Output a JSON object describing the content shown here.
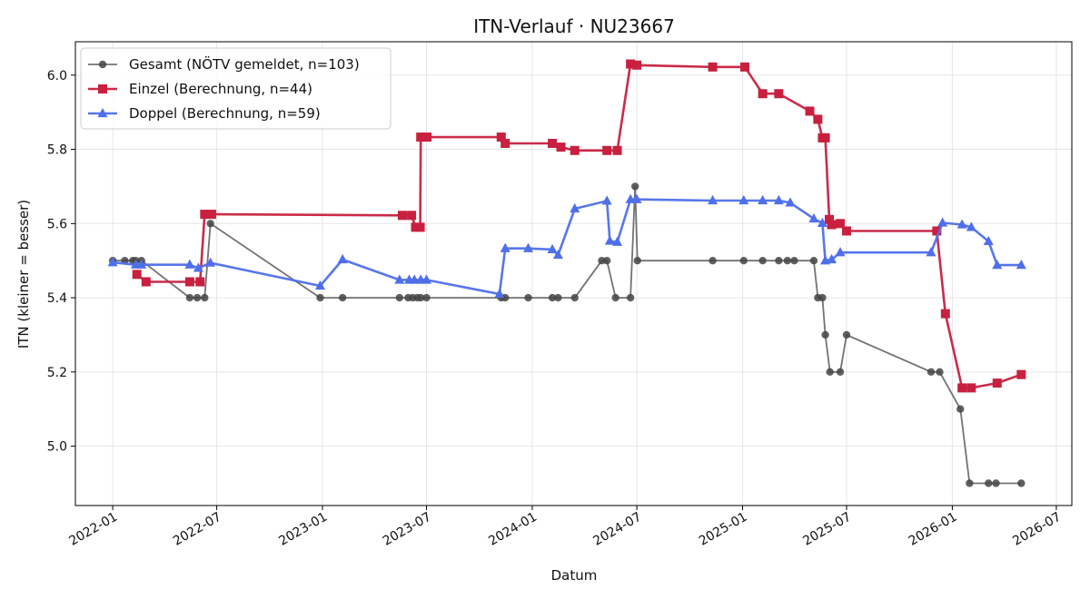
{
  "chart_data": {
    "type": "line",
    "title": "ITN-Verlauf · NU23667",
    "xlabel": "Datum",
    "ylabel": "ITN  (kleiner = besser)",
    "x_type": "date",
    "xlim": [
      "2021-10-28",
      "2026-07-28"
    ],
    "ylim": [
      4.84,
      6.09
    ],
    "x_ticks": [
      "2022-01",
      "2022-07",
      "2023-01",
      "2023-07",
      "2024-01",
      "2024-07",
      "2025-01",
      "2025-07",
      "2026-01",
      "2026-07"
    ],
    "y_ticks": [
      5.0,
      5.2,
      5.4,
      5.6,
      5.8,
      6.0
    ],
    "grid": true,
    "legend_position": "top-left",
    "series": [
      {
        "name": "Gesamt (NÖTV gemeldet, n=103)",
        "color": "#444444",
        "marker": "circle",
        "points": [
          [
            "2022-01-01",
            5.5
          ],
          [
            "2022-01-22",
            5.5
          ],
          [
            "2022-02-05",
            5.5
          ],
          [
            "2022-02-10",
            5.5
          ],
          [
            "2022-02-20",
            5.5
          ],
          [
            "2022-05-15",
            5.4
          ],
          [
            "2022-05-28",
            5.4
          ],
          [
            "2022-06-10",
            5.4
          ],
          [
            "2022-06-20",
            5.6
          ],
          [
            "2022-12-28",
            5.4
          ],
          [
            "2023-02-05",
            5.4
          ],
          [
            "2023-05-15",
            5.4
          ],
          [
            "2023-05-30",
            5.4
          ],
          [
            "2023-06-07",
            5.4
          ],
          [
            "2023-06-15",
            5.4
          ],
          [
            "2023-06-21",
            5.4
          ],
          [
            "2023-07-01",
            5.4
          ],
          [
            "2023-11-08",
            5.4
          ],
          [
            "2023-11-15",
            5.4
          ],
          [
            "2023-12-25",
            5.4
          ],
          [
            "2024-02-05",
            5.4
          ],
          [
            "2024-02-15",
            5.4
          ],
          [
            "2024-03-15",
            5.4
          ],
          [
            "2024-05-01",
            5.5
          ],
          [
            "2024-05-10",
            5.5
          ],
          [
            "2024-05-25",
            5.4
          ],
          [
            "2024-06-20",
            5.4
          ],
          [
            "2024-06-28",
            5.7
          ],
          [
            "2024-07-02",
            5.5
          ],
          [
            "2024-11-10",
            5.5
          ],
          [
            "2025-01-03",
            5.5
          ],
          [
            "2025-02-05",
            5.5
          ],
          [
            "2025-03-05",
            5.5
          ],
          [
            "2025-03-20",
            5.5
          ],
          [
            "2025-04-01",
            5.5
          ],
          [
            "2025-05-05",
            5.5
          ],
          [
            "2025-05-12",
            5.4
          ],
          [
            "2025-05-20",
            5.4
          ],
          [
            "2025-05-25",
            5.3
          ],
          [
            "2025-06-02",
            5.2
          ],
          [
            "2025-06-20",
            5.2
          ],
          [
            "2025-07-01",
            5.3
          ],
          [
            "2025-11-25",
            5.2
          ],
          [
            "2025-12-10",
            5.2
          ],
          [
            "2026-01-15",
            5.1
          ],
          [
            "2026-01-31",
            4.9
          ],
          [
            "2026-03-05",
            4.9
          ],
          [
            "2026-03-18",
            4.9
          ],
          [
            "2026-05-01",
            4.9
          ]
        ]
      },
      {
        "name": "Einzel (Berechnung, n=44)",
        "color": "#c8203e",
        "marker": "square",
        "points": [
          [
            "2022-02-12",
            5.463
          ],
          [
            "2022-02-28",
            5.443
          ],
          [
            "2022-05-15",
            5.443
          ],
          [
            "2022-06-02",
            5.443
          ],
          [
            "2022-06-10",
            5.625
          ],
          [
            "2022-06-22",
            5.625
          ],
          [
            "2023-05-20",
            5.622
          ],
          [
            "2023-06-05",
            5.622
          ],
          [
            "2023-06-12",
            5.59
          ],
          [
            "2023-06-20",
            5.59
          ],
          [
            "2023-06-21",
            5.833
          ],
          [
            "2023-07-02",
            5.833
          ],
          [
            "2023-11-08",
            5.833
          ],
          [
            "2023-11-15",
            5.816
          ],
          [
            "2024-02-05",
            5.816
          ],
          [
            "2024-02-20",
            5.806
          ],
          [
            "2024-03-15",
            5.797
          ],
          [
            "2024-05-10",
            5.797
          ],
          [
            "2024-05-28",
            5.797
          ],
          [
            "2024-06-20",
            6.03
          ],
          [
            "2024-07-01",
            6.027
          ],
          [
            "2024-11-10",
            6.022
          ],
          [
            "2025-01-05",
            6.022
          ],
          [
            "2025-02-05",
            5.95
          ],
          [
            "2025-03-05",
            5.95
          ],
          [
            "2025-04-28",
            5.903
          ],
          [
            "2025-05-12",
            5.881
          ],
          [
            "2025-05-20",
            5.831
          ],
          [
            "2025-05-25",
            5.831
          ],
          [
            "2025-06-01",
            5.611
          ],
          [
            "2025-06-05",
            5.597
          ],
          [
            "2025-06-20",
            5.6
          ],
          [
            "2025-07-01",
            5.58
          ],
          [
            "2025-12-05",
            5.58
          ],
          [
            "2025-12-20",
            5.357
          ],
          [
            "2026-01-18",
            5.157
          ],
          [
            "2026-02-03",
            5.157
          ],
          [
            "2026-03-20",
            5.17
          ],
          [
            "2026-05-01",
            5.193
          ]
        ]
      },
      {
        "name": "Doppel (Berechnung, n=59)",
        "color": "#4f6fea",
        "marker": "triangle",
        "points": [
          [
            "2022-01-01",
            5.495
          ],
          [
            "2022-02-10",
            5.489
          ],
          [
            "2022-02-20",
            5.489
          ],
          [
            "2022-05-15",
            5.489
          ],
          [
            "2022-05-30",
            5.48
          ],
          [
            "2022-06-20",
            5.494
          ],
          [
            "2022-12-28",
            5.432
          ],
          [
            "2023-02-05",
            5.503
          ],
          [
            "2023-05-15",
            5.448
          ],
          [
            "2023-06-01",
            5.448
          ],
          [
            "2023-06-10",
            5.448
          ],
          [
            "2023-06-21",
            5.448
          ],
          [
            "2023-07-01",
            5.448
          ],
          [
            "2023-11-05",
            5.41
          ],
          [
            "2023-11-15",
            5.533
          ],
          [
            "2023-12-25",
            5.533
          ],
          [
            "2024-02-05",
            5.53
          ],
          [
            "2024-02-15",
            5.515
          ],
          [
            "2024-03-15",
            5.64
          ],
          [
            "2024-05-10",
            5.661
          ],
          [
            "2024-05-15",
            5.553
          ],
          [
            "2024-05-28",
            5.55
          ],
          [
            "2024-06-20",
            5.665
          ],
          [
            "2024-07-01",
            5.665
          ],
          [
            "2024-11-10",
            5.662
          ],
          [
            "2025-01-03",
            5.662
          ],
          [
            "2025-02-05",
            5.662
          ],
          [
            "2025-03-05",
            5.662
          ],
          [
            "2025-03-25",
            5.656
          ],
          [
            "2025-05-05",
            5.613
          ],
          [
            "2025-05-20",
            5.601
          ],
          [
            "2025-05-25",
            5.5
          ],
          [
            "2025-06-05",
            5.503
          ],
          [
            "2025-06-20",
            5.522
          ],
          [
            "2025-11-25",
            5.522
          ],
          [
            "2025-12-15",
            5.602
          ],
          [
            "2026-01-18",
            5.597
          ],
          [
            "2026-02-03",
            5.59
          ],
          [
            "2026-03-05",
            5.552
          ],
          [
            "2026-03-20",
            5.488
          ],
          [
            "2026-05-01",
            5.488
          ]
        ]
      }
    ]
  }
}
